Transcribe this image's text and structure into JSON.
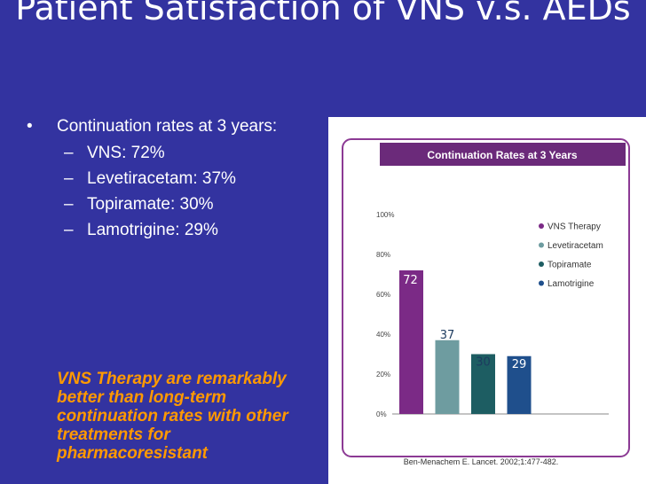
{
  "slide": {
    "title": "Patient Satisfaction of VNS v.s. AEDs",
    "bullet": "Continuation rates at 3 years:",
    "sub_bullets": [
      "VNS: 72%",
      "Levetiracetam: 37%",
      "Topiramate: 30%",
      "Lamotrigine: 29%"
    ],
    "note": "VNS Therapy are remarkably better than long-term continuation rates with other treatments for pharmacoresistant"
  },
  "chart_data": {
    "type": "bar",
    "title": "Continuation Rates at 3 Years",
    "categories": [
      "VNS Therapy",
      "Levetiracetam",
      "Topiramate",
      "Lamotrigine"
    ],
    "values": [
      72,
      37,
      30,
      29
    ],
    "data_labels": [
      "72",
      "37",
      "30",
      "29"
    ],
    "ylim": [
      0,
      100
    ],
    "y_ticks": [
      "0%",
      "20%",
      "40%",
      "60%",
      "80%",
      "100%"
    ],
    "legend_position": "top-right",
    "colors": [
      "#7b2a86",
      "#6e9ca0",
      "#1d5d62",
      "#1f4f8c"
    ],
    "title_band_color": "#6b2a7a",
    "frame_color": "#8c3a94",
    "source": "Ben-Menachem E. Lancet. 2002;1:477-482."
  }
}
